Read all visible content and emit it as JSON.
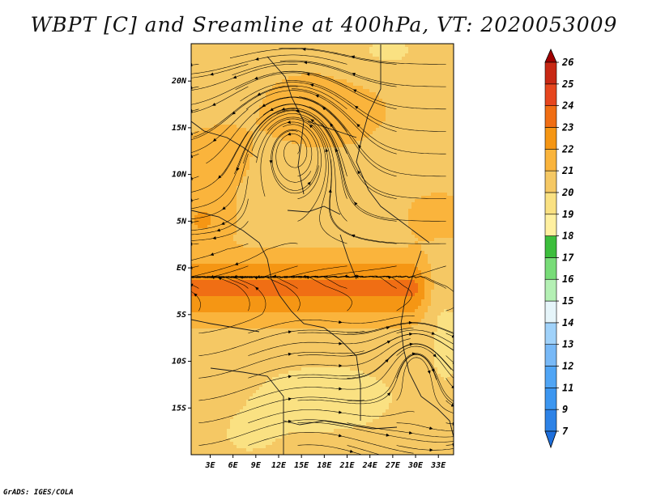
{
  "title": "WBPT [C] and Sreamline at 400hPa, VT: 2020053009",
  "footer": "GrADS: IGES/COLA",
  "chart_data": {
    "type": "heatmap",
    "title": "WBPT [C] and Sreamline at 400hPa, VT: 2020053009",
    "variable": "Wet-bulb potential temperature [C] with streamlines",
    "level": "400hPa",
    "valid_time": "2020053009",
    "x_axis": {
      "ticks": [
        "3E",
        "6E",
        "9E",
        "12E",
        "15E",
        "18E",
        "21E",
        "24E",
        "27E",
        "30E",
        "33E"
      ],
      "range": [
        0.5,
        35
      ]
    },
    "y_axis": {
      "ticks": [
        "20N",
        "15N",
        "10N",
        "5N",
        "EQ",
        "5S",
        "10S",
        "15S"
      ],
      "range": [
        -20,
        24
      ]
    },
    "colorbar": {
      "labels": [
        "7",
        "9",
        "11",
        "12",
        "13",
        "14",
        "15",
        "16",
        "17",
        "18",
        "19",
        "20",
        "21",
        "22",
        "23",
        "24",
        "25",
        "26"
      ],
      "colors": [
        "#1e6fdc",
        "#2d82e6",
        "#3c96f0",
        "#50a5f5",
        "#78b9f7",
        "#a0d2fa",
        "#e6f5fa",
        "#b4f0b4",
        "#78dc78",
        "#3cbe3c",
        "#fff0a0",
        "#fae182",
        "#f5c864",
        "#fab43c",
        "#f59614",
        "#f06e14",
        "#e6461e",
        "#c82814",
        "#a00000"
      ],
      "orientation": "vertical",
      "placement": "right"
    },
    "regions": [
      {
        "name": "northern band",
        "value_range": [
          20,
          22
        ]
      },
      {
        "name": "west coast 5N",
        "value_range": [
          23,
          24
        ]
      },
      {
        "name": "equatorial band EQ to 5S",
        "value_range": [
          23,
          24
        ]
      },
      {
        "name": "southern region 10S-15S",
        "value_range": [
          19,
          21
        ]
      }
    ],
    "features": [
      "cyclonic streamline circulation near 14E 13N",
      "mostly westward easterly flow north of equator",
      "confluent streamlines near 12E-24E at 3S"
    ],
    "grid": false,
    "legend": "colorbar at right"
  }
}
